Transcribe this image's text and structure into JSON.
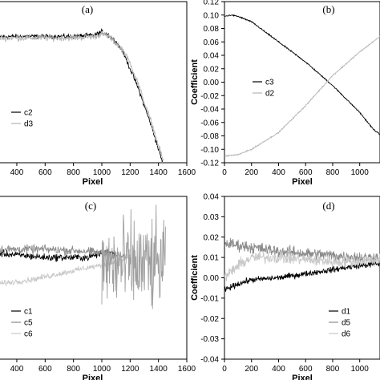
{
  "chart_data": [
    {
      "panel": "(a)",
      "type": "line",
      "xlabel": "Pixel",
      "ylabel": "",
      "xlim": [
        270,
        1600
      ],
      "ylim": [
        -0.12,
        0.12
      ],
      "xticks": [
        400,
        600,
        800,
        1000,
        1200,
        1400,
        1600
      ],
      "yticks": [],
      "grid": false,
      "legend_position": "lower-left",
      "series": [
        {
          "name": "c2",
          "color": "#000000",
          "noise": 0.003,
          "x": [
            270,
            400,
            600,
            800,
            950,
            1000,
            1050,
            1100,
            1150,
            1200,
            1250,
            1300,
            1350,
            1400,
            1430
          ],
          "y": [
            0.068,
            0.068,
            0.068,
            0.068,
            0.07,
            0.075,
            0.07,
            0.06,
            0.045,
            0.02,
            -0.005,
            -0.035,
            -0.065,
            -0.1,
            -0.12
          ]
        },
        {
          "name": "d3",
          "color": "#b4b4b4",
          "noise": 0.004,
          "x": [
            270,
            400,
            600,
            800,
            950,
            1000,
            1050,
            1100,
            1150,
            1200,
            1250,
            1300,
            1350,
            1400,
            1440
          ],
          "y": [
            0.066,
            0.066,
            0.066,
            0.066,
            0.068,
            0.072,
            0.068,
            0.058,
            0.048,
            0.028,
            0.002,
            -0.03,
            -0.06,
            -0.095,
            -0.12
          ]
        }
      ]
    },
    {
      "panel": "(b)",
      "type": "line",
      "xlabel": "Pixel",
      "ylabel": "Coefficient",
      "xlim": [
        0,
        1150
      ],
      "ylim": [
        -0.12,
        0.12
      ],
      "xticks": [
        0,
        200,
        400,
        600,
        800,
        1000
      ],
      "yticks": [
        -0.12,
        -0.1,
        -0.08,
        -0.06,
        -0.04,
        -0.02,
        0.0,
        0.02,
        0.04,
        0.06,
        0.08,
        0.1,
        0.12
      ],
      "ytick_labels": [
        "-0.12",
        "-0.10",
        "-0.08",
        "-0.06",
        "-0.04",
        "-0.02",
        "0.00",
        "0.02",
        "0.04",
        "0.06",
        "0.08",
        "0.10",
        "0.12"
      ],
      "grid": false,
      "legend_position": "center",
      "series": [
        {
          "name": "c3",
          "color": "#000000",
          "noise": 0.0008,
          "x": [
            0,
            50,
            100,
            200,
            400,
            600,
            800,
            1000,
            1100,
            1150
          ],
          "y": [
            0.098,
            0.1,
            0.098,
            0.09,
            0.06,
            0.03,
            -0.005,
            -0.045,
            -0.07,
            -0.078
          ]
        },
        {
          "name": "d2",
          "color": "#b4b4b4",
          "noise": 0.0008,
          "x": [
            0,
            100,
            200,
            400,
            600,
            800,
            1000,
            1150
          ],
          "y": [
            -0.11,
            -0.108,
            -0.1,
            -0.075,
            -0.035,
            0.01,
            0.045,
            0.068
          ]
        }
      ]
    },
    {
      "panel": "(c)",
      "type": "line",
      "xlabel": "Pixel",
      "ylabel": "",
      "xlim": [
        270,
        1600
      ],
      "ylim": [
        -0.04,
        0.04
      ],
      "xticks": [
        400,
        600,
        800,
        1000,
        1200,
        1400,
        1600
      ],
      "yticks": [],
      "grid": false,
      "legend_position": "lower-left",
      "series": [
        {
          "name": "c1",
          "color": "#000000",
          "noise": 0.0015,
          "x": [
            270,
            600,
            900,
            1000,
            1050,
            1100
          ],
          "y": [
            0.012,
            0.01,
            0.01,
            0.012,
            0.013,
            0.012
          ]
        },
        {
          "name": "c5",
          "color": "#8c8c8c",
          "noise": 0.0018,
          "x": [
            270,
            600,
            900,
            1000,
            1100,
            1200
          ],
          "y": [
            0.014,
            0.014,
            0.013,
            0.012,
            0.011,
            0.01
          ]
        },
        {
          "name": "c6",
          "color": "#c8c8c8",
          "noise": 0.0012,
          "x": [
            270,
            500,
            700,
            900,
            1000,
            1100,
            1200
          ],
          "y": [
            -0.003,
            -0.001,
            0.002,
            0.005,
            0.006,
            0.008,
            0.01
          ]
        },
        {
          "name": "",
          "color": "#a0a0a0",
          "noise": 0.02,
          "x": [
            1000,
            1100,
            1200,
            1300,
            1400,
            1450
          ],
          "y": [
            0.006,
            0.006,
            0.006,
            0.006,
            0.006,
            0.006
          ]
        }
      ]
    },
    {
      "panel": "(d)",
      "type": "line",
      "xlabel": "Pixel",
      "ylabel": "Coefficient",
      "xlim": [
        0,
        1150
      ],
      "ylim": [
        -0.04,
        0.04
      ],
      "xticks": [
        0,
        200,
        400,
        600,
        800,
        1000
      ],
      "yticks": [
        -0.04,
        -0.03,
        -0.02,
        -0.01,
        0.0,
        0.01,
        0.02,
        0.03,
        0.04
      ],
      "ytick_labels": [
        "-0.04",
        "-0.03",
        "-0.02",
        "-0.01",
        "0.00",
        "0.01",
        "0.02",
        "0.03",
        "0.04"
      ],
      "grid": false,
      "legend_position": "lower-right",
      "series": [
        {
          "name": "d1",
          "color": "#000000",
          "noise": 0.0012,
          "x": [
            0,
            100,
            200,
            400,
            600,
            800,
            1000,
            1150
          ],
          "y": [
            -0.006,
            -0.003,
            -0.001,
            0.0,
            0.002,
            0.004,
            0.006,
            0.007
          ]
        },
        {
          "name": "d5",
          "color": "#8c8c8c",
          "noise": 0.0025,
          "x": [
            0,
            100,
            200,
            400,
            600,
            800,
            1000,
            1150
          ],
          "y": [
            0.017,
            0.016,
            0.015,
            0.013,
            0.012,
            0.011,
            0.01,
            0.01
          ]
        },
        {
          "name": "d6",
          "color": "#c8c8c8",
          "noise": 0.0025,
          "x": [
            0,
            100,
            200,
            400,
            600,
            800,
            1000,
            1150
          ],
          "y": [
            0.0,
            0.006,
            0.01,
            0.01,
            0.009,
            0.008,
            0.008,
            0.009
          ]
        }
      ]
    }
  ]
}
